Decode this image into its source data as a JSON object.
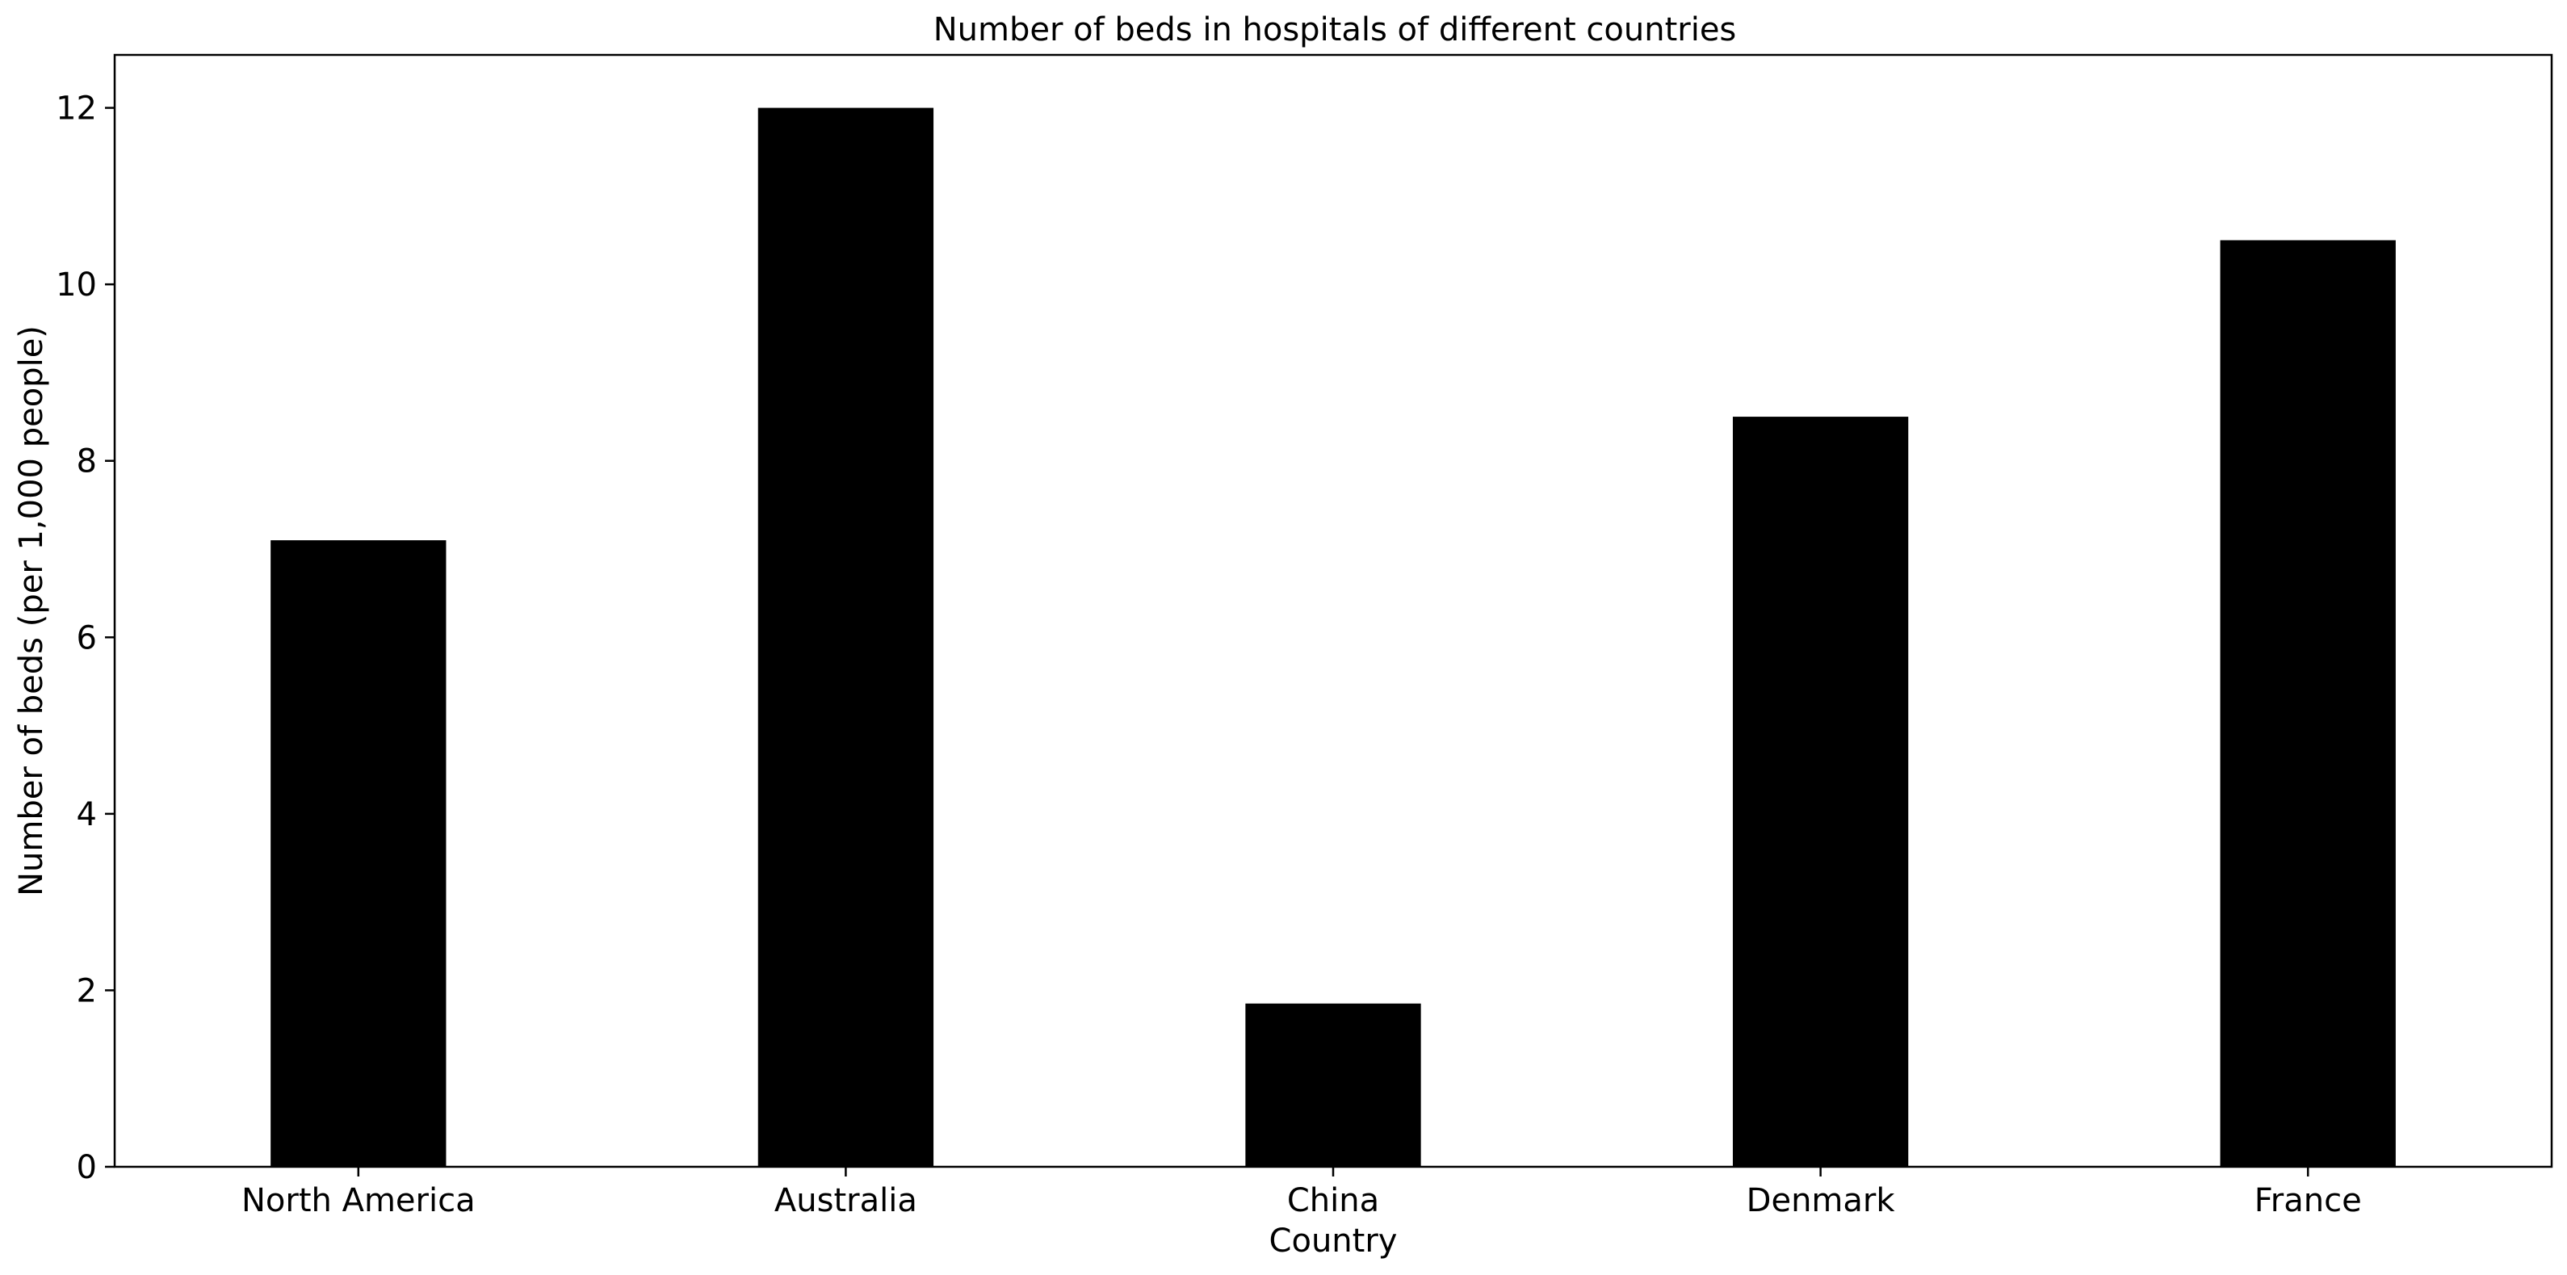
{
  "chart_data": {
    "type": "bar",
    "title": "Number of beds in hospitals of different countries",
    "xlabel": "Country",
    "ylabel": "Number of beds (per 1,000 people)",
    "categories": [
      "North America",
      "Australia",
      "China",
      "Denmark",
      "France"
    ],
    "values": [
      7.1,
      12.0,
      1.85,
      8.5,
      10.5
    ],
    "ylim": [
      0,
      12.6
    ],
    "yticks": [
      0,
      2,
      4,
      6,
      8,
      10,
      12
    ],
    "bar_color": "#000000",
    "grid": false,
    "legend": "none"
  }
}
